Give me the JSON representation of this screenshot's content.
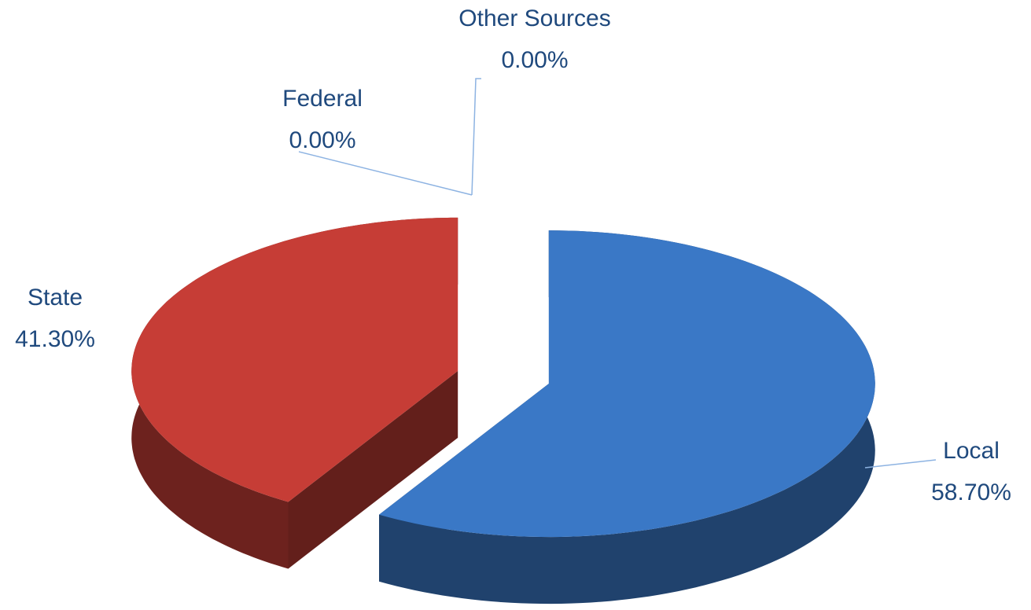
{
  "chart_data": {
    "type": "pie",
    "categories": [
      "Local",
      "State",
      "Federal",
      "Other Sources"
    ],
    "values": [
      58.7,
      41.3,
      0,
      0
    ],
    "value_labels": [
      "58.70%",
      "41.30%",
      "0.00%",
      "0.00%"
    ],
    "colors": [
      "#3a78c6",
      "#c63d36",
      null,
      null
    ]
  }
}
